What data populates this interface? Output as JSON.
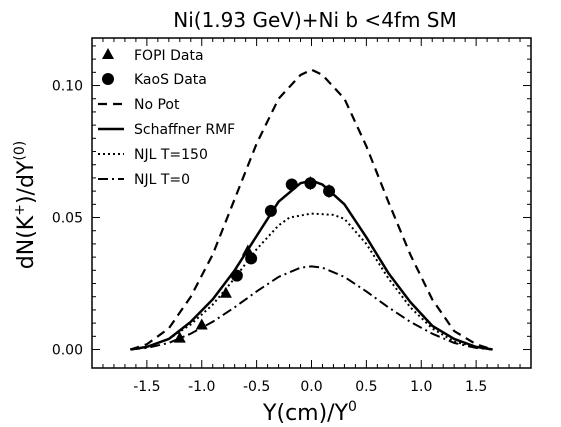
{
  "chart_data": {
    "type": "line",
    "title": "Ni(1.93 GeV)+Ni b <4fm SM",
    "xlabel": "Y(cm)/Y",
    "xlabel_sup": "0",
    "ylabel": "dN(K",
    "ylabel_sup1": "+",
    "ylabel_mid": ")/dY",
    "ylabel_sup2": "(0)",
    "xlim": [
      -2.0,
      2.0
    ],
    "ylim": [
      -0.007,
      0.118
    ],
    "xticks": [
      -1.5,
      -1.0,
      -0.5,
      0.0,
      0.5,
      1.0,
      1.5
    ],
    "xtick_labels": [
      "-1.5",
      "-1.0",
      "-0.5",
      "0.0",
      "0.5",
      "1.0",
      "1.5"
    ],
    "yticks": [
      0.0,
      0.05,
      0.1
    ],
    "ytick_labels": [
      "0.00",
      "0.05",
      "0.10"
    ],
    "legend_position": "top-left",
    "series": [
      {
        "name": "FOPI Data",
        "kind": "scatter",
        "marker": "triangle",
        "x": [
          -1.2,
          -1.0,
          -0.78,
          -0.58
        ],
        "y": [
          0.0045,
          0.0095,
          0.0215,
          0.0375
        ]
      },
      {
        "name": "KaoS Data",
        "kind": "scatter",
        "marker": "circle",
        "x": [
          -0.68,
          -0.55,
          -0.37,
          -0.18,
          -0.01,
          0.16
        ],
        "y": [
          0.028,
          0.0345,
          0.0525,
          0.0625,
          0.063,
          0.06
        ],
        "yerr": [
          0.0015,
          0.0015,
          0.002,
          0.002,
          0.0025,
          0.0025
        ]
      },
      {
        "name": "No Pot",
        "kind": "line",
        "dash": "dashed",
        "x": [
          -1.65,
          -1.5,
          -1.3,
          -1.1,
          -0.9,
          -0.7,
          -0.5,
          -0.3,
          -0.1,
          0.0,
          0.1,
          0.3,
          0.5,
          0.7,
          0.9,
          1.1,
          1.3,
          1.5,
          1.65
        ],
        "y": [
          0.0,
          0.002,
          0.008,
          0.02,
          0.036,
          0.057,
          0.078,
          0.095,
          0.104,
          0.106,
          0.104,
          0.095,
          0.077,
          0.056,
          0.036,
          0.019,
          0.007,
          0.002,
          0.0
        ]
      },
      {
        "name": "Schaffner RMF",
        "kind": "line",
        "dash": "solid",
        "x": [
          -1.65,
          -1.5,
          -1.3,
          -1.1,
          -0.9,
          -0.7,
          -0.5,
          -0.3,
          -0.1,
          0.0,
          0.1,
          0.3,
          0.5,
          0.7,
          0.9,
          1.1,
          1.3,
          1.5,
          1.65
        ],
        "y": [
          0.0,
          0.001,
          0.004,
          0.0105,
          0.019,
          0.03,
          0.043,
          0.056,
          0.063,
          0.064,
          0.0625,
          0.055,
          0.0425,
          0.029,
          0.018,
          0.009,
          0.004,
          0.001,
          0.0
        ]
      },
      {
        "name": "NJL T=150",
        "kind": "line",
        "dash": "dotted",
        "x": [
          -1.65,
          -1.5,
          -1.3,
          -1.1,
          -0.9,
          -0.7,
          -0.5,
          -0.3,
          -0.2,
          0.0,
          0.2,
          0.3,
          0.5,
          0.7,
          0.9,
          1.1,
          1.3,
          1.5,
          1.65
        ],
        "y": [
          0.0,
          0.001,
          0.004,
          0.0095,
          0.017,
          0.027,
          0.038,
          0.047,
          0.05,
          0.0515,
          0.051,
          0.0495,
          0.04,
          0.027,
          0.016,
          0.008,
          0.003,
          0.001,
          0.0
        ]
      },
      {
        "name": "NJL T=0",
        "kind": "line",
        "dash": "dashdot",
        "x": [
          -1.65,
          -1.5,
          -1.3,
          -1.1,
          -0.9,
          -0.7,
          -0.5,
          -0.3,
          -0.1,
          0.0,
          0.1,
          0.3,
          0.5,
          0.7,
          0.9,
          1.1,
          1.3,
          1.5,
          1.65
        ],
        "y": [
          0.0,
          0.0006,
          0.0025,
          0.006,
          0.0105,
          0.016,
          0.022,
          0.0275,
          0.031,
          0.0315,
          0.031,
          0.0275,
          0.022,
          0.016,
          0.0105,
          0.006,
          0.0025,
          0.0006,
          0.0
        ]
      }
    ]
  }
}
